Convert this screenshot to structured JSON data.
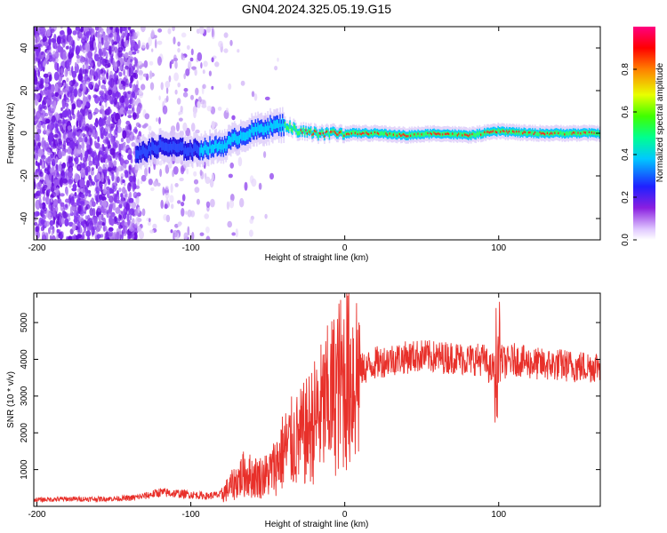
{
  "title": "GN04.2024.325.05.19.G15",
  "chart_data": [
    {
      "type": "heatmap",
      "xlabel": "Height of straight line (km)",
      "ylabel": "Frequency (Hz)",
      "xlim": [
        -202,
        166
      ],
      "ylim": [
        -50,
        50
      ],
      "x_ticks": [
        -200,
        -100,
        0,
        100
      ],
      "x_tick_labels": [
        "-200",
        "-100",
        "0",
        "100"
      ],
      "y_ticks": [
        -40,
        -20,
        0,
        20,
        40
      ],
      "y_tick_labels": [
        "-40",
        "-20",
        "0",
        "20",
        "40"
      ],
      "colorbar": {
        "label": "Normalized spectral amplitude",
        "range": [
          0.0,
          1.0
        ],
        "ticks": [
          0.0,
          0.2,
          0.4,
          0.6,
          0.8
        ],
        "tick_labels": [
          "0.0",
          "0.2",
          "0.4",
          "0.6",
          "0.8"
        ],
        "colormap": "rainbow (white-violet-blue-cyan-green-yellow-red-magenta)"
      },
      "ridge": {
        "x": [
          -136,
          -120,
          -100,
          -90,
          -80,
          -70,
          -60,
          -50,
          -40,
          -30,
          -20,
          -10,
          0,
          20,
          40,
          60,
          80,
          90,
          100,
          120,
          140,
          166
        ],
        "frequency": [
          -10,
          -6,
          -8,
          -7,
          -6,
          -2,
          1,
          3,
          4,
          1,
          0,
          0,
          0,
          0,
          -1,
          0,
          -1,
          0,
          1,
          0,
          0,
          0
        ]
      }
    },
    {
      "type": "line",
      "xlabel": "Height of straight line (km)",
      "ylabel": "SNR (10 * v/v)",
      "xlim": [
        -202,
        166
      ],
      "ylim": [
        0,
        5800
      ],
      "x_ticks": [
        -200,
        -100,
        0,
        100
      ],
      "x_tick_labels": [
        "-200",
        "-100",
        "0",
        "100"
      ],
      "y_ticks": [
        1000,
        2000,
        3000,
        4000,
        5000
      ],
      "y_tick_labels": [
        "1000",
        "2000",
        "3000",
        "4000",
        "5000"
      ],
      "series": [
        {
          "color": "#e8302a",
          "x": [
            -202,
            -180,
            -160,
            -140,
            -130,
            -120,
            -110,
            -100,
            -90,
            -80,
            -75,
            -70,
            -65,
            -60,
            -55,
            -50,
            -45,
            -40,
            -35,
            -30,
            -25,
            -20,
            -15,
            -10,
            -5,
            0,
            5,
            10,
            15,
            20,
            25,
            30,
            40,
            50,
            60,
            70,
            80,
            90,
            95,
            100,
            105,
            110,
            120,
            130,
            140,
            150,
            160,
            166
          ],
          "y": [
            180,
            200,
            200,
            220,
            280,
            380,
            350,
            320,
            280,
            320,
            500,
            700,
            900,
            800,
            800,
            850,
            1100,
            1500,
            1700,
            1800,
            2000,
            2300,
            2600,
            2900,
            3200,
            3500,
            3600,
            3700,
            3800,
            3900,
            3950,
            4000,
            4050,
            4100,
            4050,
            4050,
            4000,
            4000,
            3700,
            4000,
            3900,
            4000,
            3900,
            3850,
            3850,
            3800,
            3800,
            3850
          ]
        }
      ]
    }
  ]
}
